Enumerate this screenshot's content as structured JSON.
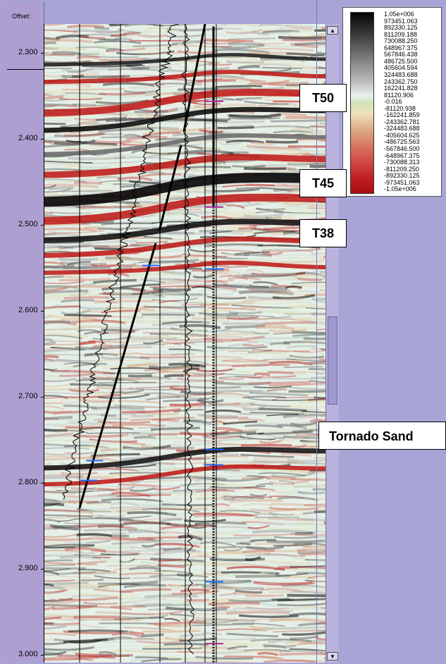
{
  "axis": {
    "offset_label": "Offset:",
    "ticks": [
      {
        "label": "2.300",
        "value": 2.3
      },
      {
        "label": "2.400",
        "value": 2.4
      },
      {
        "label": "2.500",
        "value": 2.5
      },
      {
        "label": "2.600",
        "value": 2.6
      },
      {
        "label": "2.700",
        "value": 2.7
      },
      {
        "label": "2.800",
        "value": 2.8
      },
      {
        "label": "2.900",
        "value": 2.9
      },
      {
        "label": "3.000",
        "value": 3.0
      }
    ],
    "time_range": [
      2.267,
      3.01
    ]
  },
  "colorbar": {
    "labels": [
      "1.05e+006",
      "973451.063",
      "892330.125",
      "811209.188",
      "730088.250",
      "648967.375",
      "567846.438",
      "486725.500",
      "405604.594",
      "324483.688",
      "243362.750",
      "162241.828",
      "81120.906",
      "-0.016",
      "-81120.938",
      "-162241.859",
      "-243362.781",
      "-324483.688",
      "-405604.625",
      "-486725.563",
      "-567846.500",
      "-648967.375",
      "-730088.313",
      "-811209.250",
      "-892330.125",
      "-973451.063",
      "-1.05e+006"
    ]
  },
  "annotations": {
    "t50": "T50",
    "t45": "T45",
    "t38": "T38",
    "tornado": "Tornado Sand"
  },
  "horizons": [
    {
      "name": "T50",
      "time": 2.355
    },
    {
      "name": "T45",
      "time": 2.455
    },
    {
      "name": "T38",
      "time": 2.51
    },
    {
      "name": "Tornado Sand",
      "time": 2.77
    }
  ],
  "wells": {
    "vertical_grid_offsets": [
      0.125,
      0.27,
      0.41,
      0.5,
      0.57,
      0.61
    ],
    "markers": [
      {
        "track": "left",
        "time": 2.775,
        "color": "#1f6cff"
      },
      {
        "track": "left",
        "time": 2.798,
        "color": "#1f6cff"
      },
      {
        "track": "left",
        "time": 2.548,
        "color": "#1f6cff"
      },
      {
        "track": "right",
        "time": 2.357,
        "color": "#b42a9a"
      },
      {
        "track": "right",
        "time": 2.48,
        "color": "#b42a9a"
      },
      {
        "track": "right",
        "time": 2.552,
        "color": "#1f6cff"
      },
      {
        "track": "right",
        "time": 2.762,
        "color": "#1f6cff"
      },
      {
        "track": "right",
        "time": 2.78,
        "color": "#1f6cff"
      },
      {
        "track": "right",
        "time": 2.916,
        "color": "#1f6cff"
      },
      {
        "track": "right",
        "time": 2.988,
        "color": "#b42a9a"
      }
    ]
  },
  "scrollbar": {
    "up": "▲",
    "down": "▼"
  },
  "colors": {
    "background": "#a7a4d6",
    "panel": "#ad9fd1",
    "positive": "#050505",
    "negative": "#c01d22",
    "neutral": "#e7f1ef"
  }
}
